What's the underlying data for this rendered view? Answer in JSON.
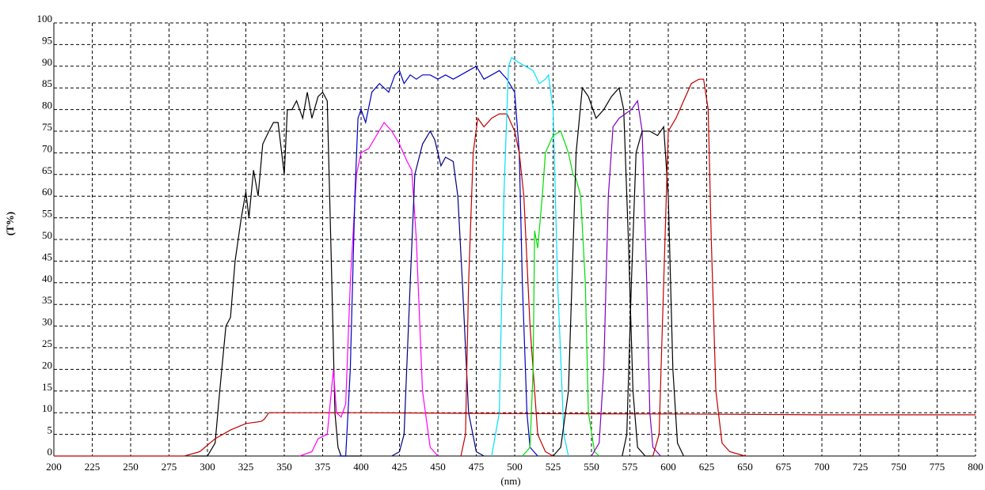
{
  "chart_data": {
    "type": "line",
    "xlabel": "(nm)",
    "ylabel": "(T%)",
    "xlim": [
      200,
      800
    ],
    "ylim": [
      0,
      100
    ],
    "xticks": [
      200,
      225,
      250,
      275,
      300,
      325,
      350,
      375,
      400,
      425,
      450,
      475,
      500,
      525,
      550,
      575,
      600,
      625,
      650,
      675,
      700,
      725,
      750,
      775,
      800
    ],
    "yticks": [
      0,
      5,
      10,
      15,
      20,
      25,
      30,
      35,
      40,
      45,
      50,
      55,
      60,
      65,
      70,
      75,
      80,
      85,
      90,
      95,
      100
    ],
    "grid": true,
    "series": [
      {
        "color": "#000000",
        "x": [
          290,
          300,
          305,
          308,
          312,
          315,
          318,
          322,
          325,
          327,
          330,
          333,
          336,
          340,
          343,
          346,
          350,
          352,
          355,
          358,
          362,
          365,
          368,
          372,
          375,
          378,
          381,
          383,
          385,
          387,
          390,
          400
        ],
        "values": [
          0,
          0,
          3,
          15,
          30,
          32,
          45,
          55,
          61,
          55,
          66,
          60,
          72,
          75,
          77,
          77,
          65,
          80,
          80,
          82,
          78,
          84,
          78,
          83,
          84,
          82,
          40,
          10,
          2,
          0,
          0,
          0
        ]
      },
      {
        "color": "#c00000",
        "x": [
          200,
          285,
          295,
          305,
          315,
          325,
          335,
          337,
          340,
          360,
          400,
          500,
          600,
          700,
          800
        ],
        "values": [
          0,
          0,
          1,
          4,
          6,
          7.5,
          8,
          8.5,
          10,
          10,
          10,
          9.8,
          9.7,
          9.5,
          9.5
        ]
      },
      {
        "color": "#ff00ff",
        "x": [
          360,
          368,
          372,
          378,
          382,
          384,
          387,
          390,
          393,
          397,
          400,
          405,
          410,
          415,
          420,
          425,
          430,
          433,
          436,
          440,
          445,
          450
        ],
        "values": [
          0,
          1,
          4,
          5,
          20,
          10,
          9,
          12,
          40,
          65,
          70,
          71,
          74,
          77,
          75,
          72,
          68,
          66,
          50,
          15,
          2,
          0
        ]
      },
      {
        "color": "#0000c0",
        "x": [
          385,
          390,
          393,
          396,
          398,
          400,
          403,
          407,
          412,
          418,
          422,
          425,
          428,
          432,
          436,
          440,
          445,
          450,
          455,
          460,
          465,
          470,
          475,
          480,
          485,
          490,
          495,
          500,
          503,
          505,
          508,
          510,
          515
        ],
        "values": [
          0,
          0,
          20,
          60,
          78,
          80,
          77,
          84,
          86,
          84,
          88,
          89,
          86,
          88,
          87,
          88,
          88,
          87,
          88,
          87,
          88,
          89,
          90,
          87,
          88,
          89,
          87,
          84,
          70,
          40,
          10,
          2,
          0
        ]
      },
      {
        "color": "#000080",
        "x": [
          420,
          425,
          428,
          432,
          435,
          440,
          445,
          448,
          452,
          455,
          460,
          463,
          466,
          470,
          475,
          480
        ],
        "values": [
          0,
          1,
          5,
          40,
          65,
          72,
          75,
          73,
          67,
          69,
          68,
          60,
          40,
          10,
          1,
          0
        ]
      },
      {
        "color": "#c00000",
        "x": [
          465,
          468,
          470,
          473,
          476,
          480,
          485,
          490,
          495,
          500,
          503,
          506,
          510,
          515,
          520,
          525
        ],
        "values": [
          0,
          5,
          40,
          70,
          78,
          76,
          78,
          79,
          79,
          75,
          70,
          60,
          30,
          5,
          1,
          0
        ]
      },
      {
        "color": "#00e0ff",
        "x": [
          485,
          490,
          493,
          496,
          498,
          502,
          507,
          512,
          516,
          520,
          522,
          525,
          528,
          532,
          535
        ],
        "values": [
          0,
          10,
          60,
          90,
          92,
          91,
          90,
          89,
          86,
          87,
          88,
          80,
          40,
          5,
          0
        ]
      },
      {
        "color": "#00dd00",
        "x": [
          505,
          510,
          512,
          513,
          515,
          518,
          520,
          525,
          530,
          535,
          538,
          540,
          543,
          546,
          548,
          552,
          555
        ],
        "values": [
          0,
          2,
          20,
          52,
          48,
          60,
          70,
          74,
          75,
          70,
          65,
          64,
          60,
          40,
          10,
          1,
          0
        ]
      },
      {
        "color": "#000000",
        "x": [
          525,
          530,
          535,
          540,
          544,
          548,
          553,
          558,
          563,
          568,
          571,
          574,
          577,
          580,
          585,
          590
        ],
        "values": [
          0,
          2,
          15,
          70,
          85,
          83,
          78,
          80,
          83,
          85,
          80,
          50,
          15,
          2,
          0,
          0
        ]
      },
      {
        "color": "#8000c0",
        "x": [
          550,
          555,
          558,
          561,
          564,
          568,
          572,
          576,
          580,
          583,
          586,
          588,
          590,
          595
        ],
        "values": [
          0,
          3,
          20,
          60,
          76,
          78,
          79,
          80,
          82,
          75,
          40,
          10,
          2,
          0
        ]
      },
      {
        "color": "#000000",
        "x": [
          570,
          573,
          576,
          579,
          583,
          588,
          593,
          597,
          600,
          603,
          606,
          610
        ],
        "values": [
          0,
          5,
          40,
          70,
          75,
          75,
          74,
          76,
          60,
          20,
          3,
          0
        ]
      },
      {
        "color": "#c00000",
        "x": [
          590,
          594,
          597,
          600,
          605,
          610,
          615,
          620,
          623,
          626,
          628,
          631,
          635,
          640,
          650
        ],
        "values": [
          0,
          5,
          40,
          75,
          78,
          82,
          86,
          87,
          87,
          80,
          50,
          15,
          3,
          1,
          0
        ]
      }
    ]
  }
}
